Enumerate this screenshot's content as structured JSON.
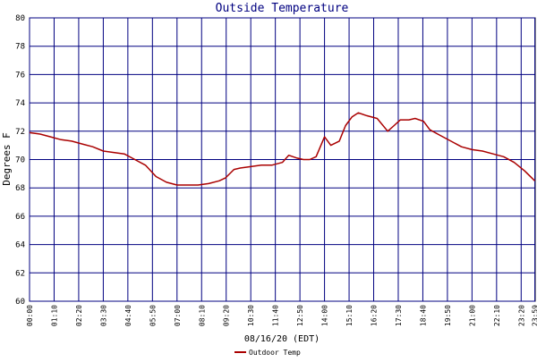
{
  "chart_data": {
    "type": "line",
    "title": "Outside Temperature",
    "ylabel": "Degrees F",
    "xlabel": "08/16/20 (EDT)",
    "ylim": [
      60,
      80
    ],
    "y_ticks": [
      "60",
      "62",
      "64",
      "66",
      "68",
      "70",
      "72",
      "74",
      "76",
      "78",
      "80"
    ],
    "x_ticks": [
      "00:00",
      "01:10",
      "02:20",
      "03:30",
      "04:40",
      "05:50",
      "07:00",
      "08:10",
      "09:20",
      "10:30",
      "11:40",
      "12:50",
      "14:00",
      "15:10",
      "16:20",
      "17:30",
      "18:40",
      "19:50",
      "21:00",
      "22:10",
      "23:20",
      "23:59"
    ],
    "grid": true,
    "legend_position": "bottom",
    "series": [
      {
        "name": "Outdoor Temp",
        "color": "#aa0000",
        "x_hours": [
          0,
          0.5,
          1,
          1.5,
          2,
          2.5,
          3,
          3.5,
          4,
          4.5,
          5,
          5.5,
          6,
          6.5,
          7,
          7.5,
          8,
          8.5,
          9,
          9.3,
          9.7,
          10,
          10.5,
          11,
          11.5,
          12,
          12.3,
          12.7,
          13,
          13.3,
          13.6,
          14,
          14.3,
          14.7,
          15,
          15.3,
          15.6,
          16,
          16.5,
          17,
          17.3,
          17.6,
          18,
          18.3,
          18.7,
          19,
          19.5,
          20,
          20.5,
          21,
          21.5,
          22,
          22.5,
          23,
          23.5,
          23.98
        ],
        "values": [
          71.9,
          71.8,
          71.6,
          71.4,
          71.3,
          71.1,
          70.9,
          70.6,
          70.5,
          70.4,
          70.0,
          69.6,
          68.8,
          68.4,
          68.2,
          68.2,
          68.2,
          68.3,
          68.5,
          68.7,
          69.3,
          69.4,
          69.5,
          69.6,
          69.6,
          69.8,
          70.3,
          70.1,
          70.0,
          70.0,
          70.2,
          71.6,
          71.0,
          71.3,
          72.4,
          73.0,
          73.3,
          73.1,
          72.9,
          72.0,
          72.4,
          72.8,
          72.8,
          72.9,
          72.7,
          72.1,
          71.7,
          71.3,
          70.9,
          70.7,
          70.6,
          70.4,
          70.2,
          69.8,
          69.2,
          68.5
        ]
      }
    ]
  }
}
